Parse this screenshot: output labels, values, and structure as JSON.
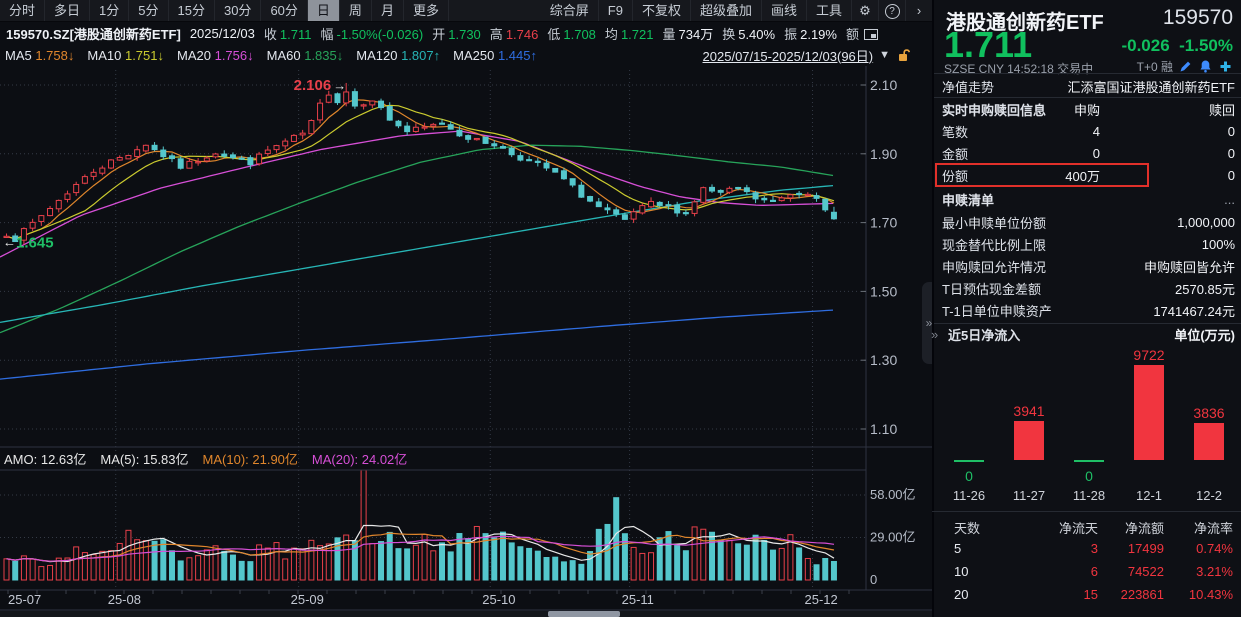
{
  "toolbar": {
    "periods": [
      "分时",
      "多日",
      "1分",
      "5分",
      "15分",
      "30分",
      "60分",
      "日",
      "周",
      "月",
      "更多"
    ],
    "active_period": "日",
    "tools": [
      "综合屏",
      "F9",
      "不复权",
      "超级叠加",
      "画线",
      "工具"
    ],
    "gear_icon": "⚙",
    "help_icon": "?",
    "more_icon": "›"
  },
  "quote_bar": {
    "symbol": "159570.SZ[港股通创新药ETF]",
    "date": "2025/12/03",
    "fields": [
      {
        "label": "收",
        "value": "1.711",
        "color": "green"
      },
      {
        "label": "幅",
        "value": "-1.50%(-0.026)",
        "color": "green"
      },
      {
        "label": "开",
        "value": "1.730",
        "color": "green"
      },
      {
        "label": "高",
        "value": "1.746",
        "color": "red"
      },
      {
        "label": "低",
        "value": "1.708",
        "color": "green"
      },
      {
        "label": "均",
        "value": "1.721",
        "color": "green"
      },
      {
        "label": "量",
        "value": "734万",
        "color": "white"
      },
      {
        "label": "换",
        "value": "5.40%",
        "color": "white"
      },
      {
        "label": "振",
        "value": "2.19%",
        "color": "white"
      },
      {
        "label": "额",
        "value": "",
        "color": "white",
        "icon": "pip"
      }
    ]
  },
  "ma_legend": [
    {
      "label": "MA5",
      "value": "1.758",
      "arrow": "↓",
      "color": "#e0862c"
    },
    {
      "label": "MA10",
      "value": "1.751",
      "arrow": "↓",
      "color": "#cbcb2f"
    },
    {
      "label": "MA20",
      "value": "1.756",
      "arrow": "↓",
      "color": "#d64fd6"
    },
    {
      "label": "MA60",
      "value": "1.835",
      "arrow": "↓",
      "color": "#27a35a"
    },
    {
      "label": "MA120",
      "value": "1.807",
      "arrow": "↑",
      "color": "#27b5b5"
    },
    {
      "label": "MA250",
      "value": "1.445",
      "arrow": "↑",
      "color": "#2f6de0"
    }
  ],
  "range_selector": {
    "text": "2025/07/15-2025/12/03(96日)",
    "caret": "▼"
  },
  "volume_legend": [
    {
      "text": "AMO: 12.63亿",
      "color": "#e8e8e8"
    },
    {
      "text": "MA(5): 15.83亿",
      "color": "#e8e8e8"
    },
    {
      "text": "MA(10): 21.90亿",
      "color": "#e0862c"
    },
    {
      "text": "MA(20): 24.02亿",
      "color": "#d64fd6"
    }
  ],
  "side_panel": {
    "name": "港股通创新药ETF",
    "code": "159570",
    "price": "1.711",
    "change": "-0.026",
    "change_pct": "-1.50%",
    "status": "SZSE  CNY  14:52:18  交易中",
    "flags": "T+0 融",
    "nav_row": {
      "label": "净值走势",
      "value": "汇添富国证港股通创新药ETF"
    },
    "realtime_header": {
      "label": "实时申购赎回信息",
      "col1": "申购",
      "col2": "赎回"
    },
    "realtime_rows": [
      {
        "label": "笔数",
        "buy": "4",
        "redeem": "0",
        "highlight": false
      },
      {
        "label": "金额",
        "buy": "0",
        "redeem": "0",
        "highlight": false
      },
      {
        "label": "份额",
        "buy": "400万",
        "redeem": "0",
        "highlight": true
      }
    ],
    "list_row": {
      "label": "申赎清单",
      "value": "..."
    },
    "info_rows": [
      {
        "label": "最小申赎单位份额",
        "value": "1,000,000"
      },
      {
        "label": "现金替代比例上限",
        "value": "100%"
      },
      {
        "label": "申购赎回允许情况",
        "value": "申购赎回皆允许"
      },
      {
        "label": "T日预估现金差额",
        "value": "2570.85元"
      },
      {
        "label": "T-1日单位申赎资产",
        "value": "1741467.24元"
      }
    ],
    "netflow_header": {
      "chevrons": "»",
      "title": "近5日净流入",
      "unit": "单位(万元)"
    },
    "flow_table": {
      "headers": [
        "天数",
        "净流天",
        "净流额",
        "净流率"
      ],
      "rows": [
        [
          "5",
          "3",
          "17499",
          "0.74%"
        ],
        [
          "10",
          "6",
          "74522",
          "3.21%"
        ],
        [
          "20",
          "15",
          "223861",
          "10.43%"
        ]
      ]
    }
  },
  "chart_data": [
    {
      "type": "candlestick",
      "title": "港股通创新药ETF 159570 日K",
      "date_range": "2025/07/15-2025/12/03",
      "num_candles": 96,
      "y_ticks": [
        "2.10",
        "1.90",
        "1.70",
        "1.50",
        "1.30",
        "1.10"
      ],
      "y_tick_values": [
        2.1,
        1.9,
        1.7,
        1.5,
        1.3,
        1.1
      ],
      "period_high": 2.106,
      "period_low": 1.645,
      "high_label": "2.106",
      "low_label": "1.645",
      "last_candle": {
        "open": 1.73,
        "high": 1.746,
        "low": 1.708,
        "close": 1.711,
        "prev_close": 1.737
      },
      "x_labels": [
        "25-07",
        "25-08",
        "25-09",
        "25-10",
        "25-11",
        "25-12"
      ],
      "month_start_indices": [
        0,
        13,
        34,
        56,
        72,
        93
      ],
      "close_path_anchors": [
        [
          0,
          1.668
        ],
        [
          1,
          1.652
        ],
        [
          2,
          1.675
        ],
        [
          4,
          1.72
        ],
        [
          6,
          1.765
        ],
        [
          8,
          1.81
        ],
        [
          10,
          1.85
        ],
        [
          12,
          1.878
        ],
        [
          14,
          1.9
        ],
        [
          16,
          1.928
        ],
        [
          18,
          1.895
        ],
        [
          20,
          1.862
        ],
        [
          22,
          1.882
        ],
        [
          24,
          1.905
        ],
        [
          26,
          1.888
        ],
        [
          28,
          1.875
        ],
        [
          30,
          1.91
        ],
        [
          32,
          1.934
        ],
        [
          34,
          1.958
        ],
        [
          35,
          1.99
        ],
        [
          36,
          2.042
        ],
        [
          37,
          2.078
        ],
        [
          38,
          2.054
        ],
        [
          39,
          2.082
        ],
        [
          40,
          2.04
        ],
        [
          42,
          2.06
        ],
        [
          44,
          2.0
        ],
        [
          46,
          1.965
        ],
        [
          48,
          1.975
        ],
        [
          50,
          1.99
        ],
        [
          52,
          1.958
        ],
        [
          54,
          1.938
        ],
        [
          56,
          1.928
        ],
        [
          58,
          1.9
        ],
        [
          60,
          1.878
        ],
        [
          62,
          1.858
        ],
        [
          64,
          1.825
        ],
        [
          66,
          1.78
        ],
        [
          68,
          1.744
        ],
        [
          70,
          1.718
        ],
        [
          71,
          1.704
        ],
        [
          72,
          1.73
        ],
        [
          74,
          1.754
        ],
        [
          76,
          1.744
        ],
        [
          78,
          1.728
        ],
        [
          80,
          1.798
        ],
        [
          82,
          1.784
        ],
        [
          84,
          1.8
        ],
        [
          86,
          1.77
        ],
        [
          88,
          1.758
        ],
        [
          90,
          1.784
        ],
        [
          92,
          1.79
        ],
        [
          93,
          1.778
        ],
        [
          94,
          1.737
        ],
        [
          95,
          1.711
        ]
      ],
      "ma_overlays": {
        "MA20": [
          [
            0,
            1.6
          ],
          [
            80,
            1.72
          ],
          [
            160,
            1.8
          ],
          [
            240,
            1.857
          ],
          [
            320,
            1.912
          ],
          [
            400,
            1.952
          ],
          [
            460,
            1.966
          ],
          [
            520,
            1.936
          ],
          [
            560,
            1.89
          ],
          [
            600,
            1.845
          ],
          [
            640,
            1.805
          ],
          [
            680,
            1.775
          ],
          [
            720,
            1.758
          ],
          [
            760,
            1.75
          ],
          [
            800,
            1.753
          ],
          [
            835,
            1.756
          ]
        ],
        "MA60": [
          [
            0,
            1.38
          ],
          [
            60,
            1.45
          ],
          [
            120,
            1.53
          ],
          [
            180,
            1.615
          ],
          [
            240,
            1.69
          ],
          [
            300,
            1.757
          ],
          [
            360,
            1.82
          ],
          [
            420,
            1.875
          ],
          [
            480,
            1.912
          ],
          [
            530,
            1.925
          ],
          [
            580,
            1.922
          ],
          [
            630,
            1.91
          ],
          [
            680,
            1.894
          ],
          [
            730,
            1.876
          ],
          [
            780,
            1.862
          ],
          [
            835,
            1.836
          ]
        ],
        "MA120": [
          [
            0,
            1.41
          ],
          [
            100,
            1.46
          ],
          [
            200,
            1.515
          ],
          [
            300,
            1.565
          ],
          [
            400,
            1.615
          ],
          [
            500,
            1.665
          ],
          [
            600,
            1.715
          ],
          [
            700,
            1.763
          ],
          [
            780,
            1.794
          ],
          [
            835,
            1.808
          ]
        ],
        "MA250": [
          [
            0,
            1.245
          ],
          [
            150,
            1.29
          ],
          [
            300,
            1.328
          ],
          [
            450,
            1.362
          ],
          [
            600,
            1.398
          ],
          [
            720,
            1.425
          ],
          [
            835,
            1.446
          ]
        ]
      },
      "volume_anchors": [
        [
          0,
          12
        ],
        [
          2,
          16
        ],
        [
          4,
          10
        ],
        [
          6,
          14
        ],
        [
          8,
          22
        ],
        [
          10,
          16
        ],
        [
          12,
          18
        ],
        [
          14,
          30
        ],
        [
          16,
          24
        ],
        [
          18,
          26
        ],
        [
          20,
          12
        ],
        [
          22,
          15
        ],
        [
          24,
          20
        ],
        [
          26,
          16
        ],
        [
          28,
          14
        ],
        [
          30,
          25
        ],
        [
          32,
          18
        ],
        [
          34,
          21
        ],
        [
          36,
          26
        ],
        [
          38,
          31
        ],
        [
          40,
          25
        ],
        [
          41,
          75
        ],
        [
          42,
          30
        ],
        [
          44,
          27
        ],
        [
          46,
          25
        ],
        [
          48,
          28
        ],
        [
          50,
          23
        ],
        [
          52,
          26
        ],
        [
          54,
          30
        ],
        [
          56,
          30
        ],
        [
          58,
          28
        ],
        [
          60,
          20
        ],
        [
          62,
          15
        ],
        [
          64,
          13
        ],
        [
          66,
          12
        ],
        [
          68,
          36
        ],
        [
          70,
          50
        ],
        [
          72,
          24
        ],
        [
          74,
          20
        ],
        [
          76,
          28
        ],
        [
          78,
          18
        ],
        [
          80,
          44
        ],
        [
          82,
          31
        ],
        [
          84,
          25
        ],
        [
          86,
          31
        ],
        [
          88,
          26
        ],
        [
          90,
          29
        ],
        [
          92,
          16
        ],
        [
          93,
          13
        ],
        [
          94,
          15
        ],
        [
          95,
          12.63
        ]
      ],
      "volume_y_ticks": [
        "58.00亿",
        "29.00亿",
        "0"
      ],
      "volume_y_values": [
        58,
        29,
        0
      ]
    },
    {
      "type": "bar",
      "title": "近5日净流入",
      "unit": "万元",
      "categories": [
        "11-26",
        "11-27",
        "11-28",
        "12-1",
        "12-2"
      ],
      "values": [
        0,
        3941,
        0,
        9722,
        3836
      ],
      "bar_color": "#f1353f",
      "zero_color": "#1fbf66"
    }
  ],
  "colors": {
    "up_red": "#e8404a",
    "down_cyan": "#54c7cc",
    "green_text": "#10c05e",
    "grid": "#343a46",
    "axis": "#2e3340",
    "ma5": "#e0862c",
    "ma10": "#cbcb2f",
    "vol_ma5": "#e8e8e8"
  }
}
